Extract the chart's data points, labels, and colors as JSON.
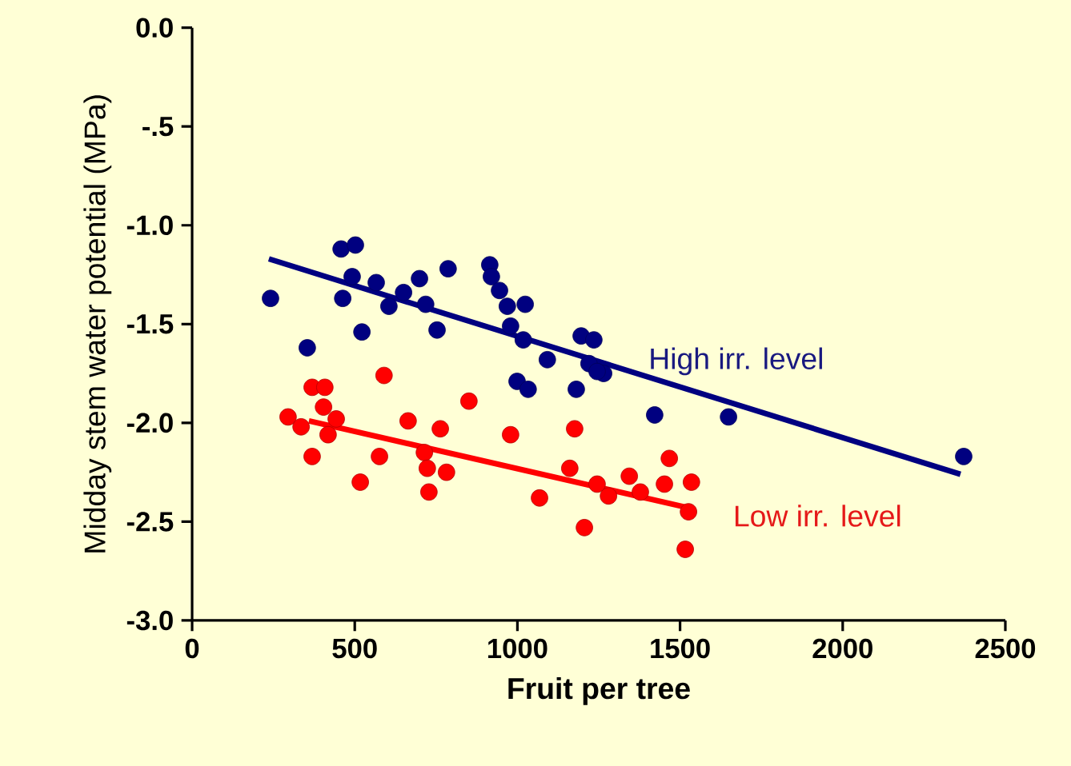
{
  "chart_data": {
    "type": "scatter",
    "xlabel": "Fruit per tree",
    "ylabel": "Midday stem water potential (MPa)",
    "xlim": [
      0,
      2500
    ],
    "ylim": [
      -3.0,
      0.0
    ],
    "xticks": [
      0,
      500,
      1000,
      1500,
      2000,
      2500
    ],
    "yticks": [
      {
        "value": 0,
        "label": "0.0"
      },
      {
        "value": -0.5,
        "label": "-.5"
      },
      {
        "value": -1.0,
        "label": "-1.0"
      },
      {
        "value": -1.5,
        "label": "-1.5"
      },
      {
        "value": -2.0,
        "label": "-2.0"
      },
      {
        "value": -2.5,
        "label": "-2.5"
      },
      {
        "value": -3.0,
        "label": "-3.0"
      }
    ],
    "grid": false,
    "legend": false,
    "series": [
      {
        "name": "High irr. level",
        "color": "#000080",
        "marker": "circle",
        "x": [
          241,
          354,
          458,
          502,
          492,
          463,
          522,
          566,
          605,
          650,
          699,
          718,
          753,
          787,
          915,
          920,
          945,
          969,
          1024,
          979,
          1018,
          999,
          1033,
          1092,
          1196,
          1220,
          1181,
          1265,
          1245,
          1235,
          1422,
          1649,
          2372
        ],
        "values": [
          -1.37,
          -1.62,
          -1.12,
          -1.1,
          -1.26,
          -1.37,
          -1.54,
          -1.29,
          -1.41,
          -1.34,
          -1.27,
          -1.4,
          -1.53,
          -1.22,
          -1.2,
          -1.26,
          -1.33,
          -1.41,
          -1.4,
          -1.51,
          -1.58,
          -1.79,
          -1.83,
          -1.68,
          -1.56,
          -1.7,
          -1.83,
          -1.75,
          -1.74,
          -1.58,
          -1.96,
          -1.97,
          -2.17
        ]
      },
      {
        "name": "Low irr. level",
        "color": "#ff0000",
        "marker": "circle",
        "x": [
          295,
          335,
          369,
          408,
          404,
          443,
          418,
          369,
          517,
          576,
          590,
          664,
          763,
          714,
          723,
          782,
          728,
          851,
          979,
          1068,
          1176,
          1161,
          1245,
          1206,
          1467,
          1535,
          1344,
          1378,
          1280,
          1452,
          1526,
          1516
        ],
        "values": [
          -1.97,
          -2.02,
          -1.82,
          -1.82,
          -1.92,
          -1.98,
          -2.06,
          -2.17,
          -2.3,
          -2.17,
          -1.76,
          -1.99,
          -2.03,
          -2.15,
          -2.23,
          -2.25,
          -2.35,
          -1.89,
          -2.06,
          -2.38,
          -2.03,
          -2.23,
          -2.31,
          -2.53,
          -2.18,
          -2.3,
          -2.27,
          -2.35,
          -2.37,
          -2.31,
          -2.45,
          -2.64
        ]
      },
      {
        "color": "#000080",
        "type": "line",
        "marker": "none",
        "x": [
          236,
          2362
        ],
        "values": [
          -1.17,
          -2.26
        ]
      },
      {
        "color": "#ff0000",
        "type": "line",
        "marker": "none",
        "x": [
          359,
          1526
        ],
        "values": [
          -1.99,
          -2.43
        ]
      }
    ]
  }
}
